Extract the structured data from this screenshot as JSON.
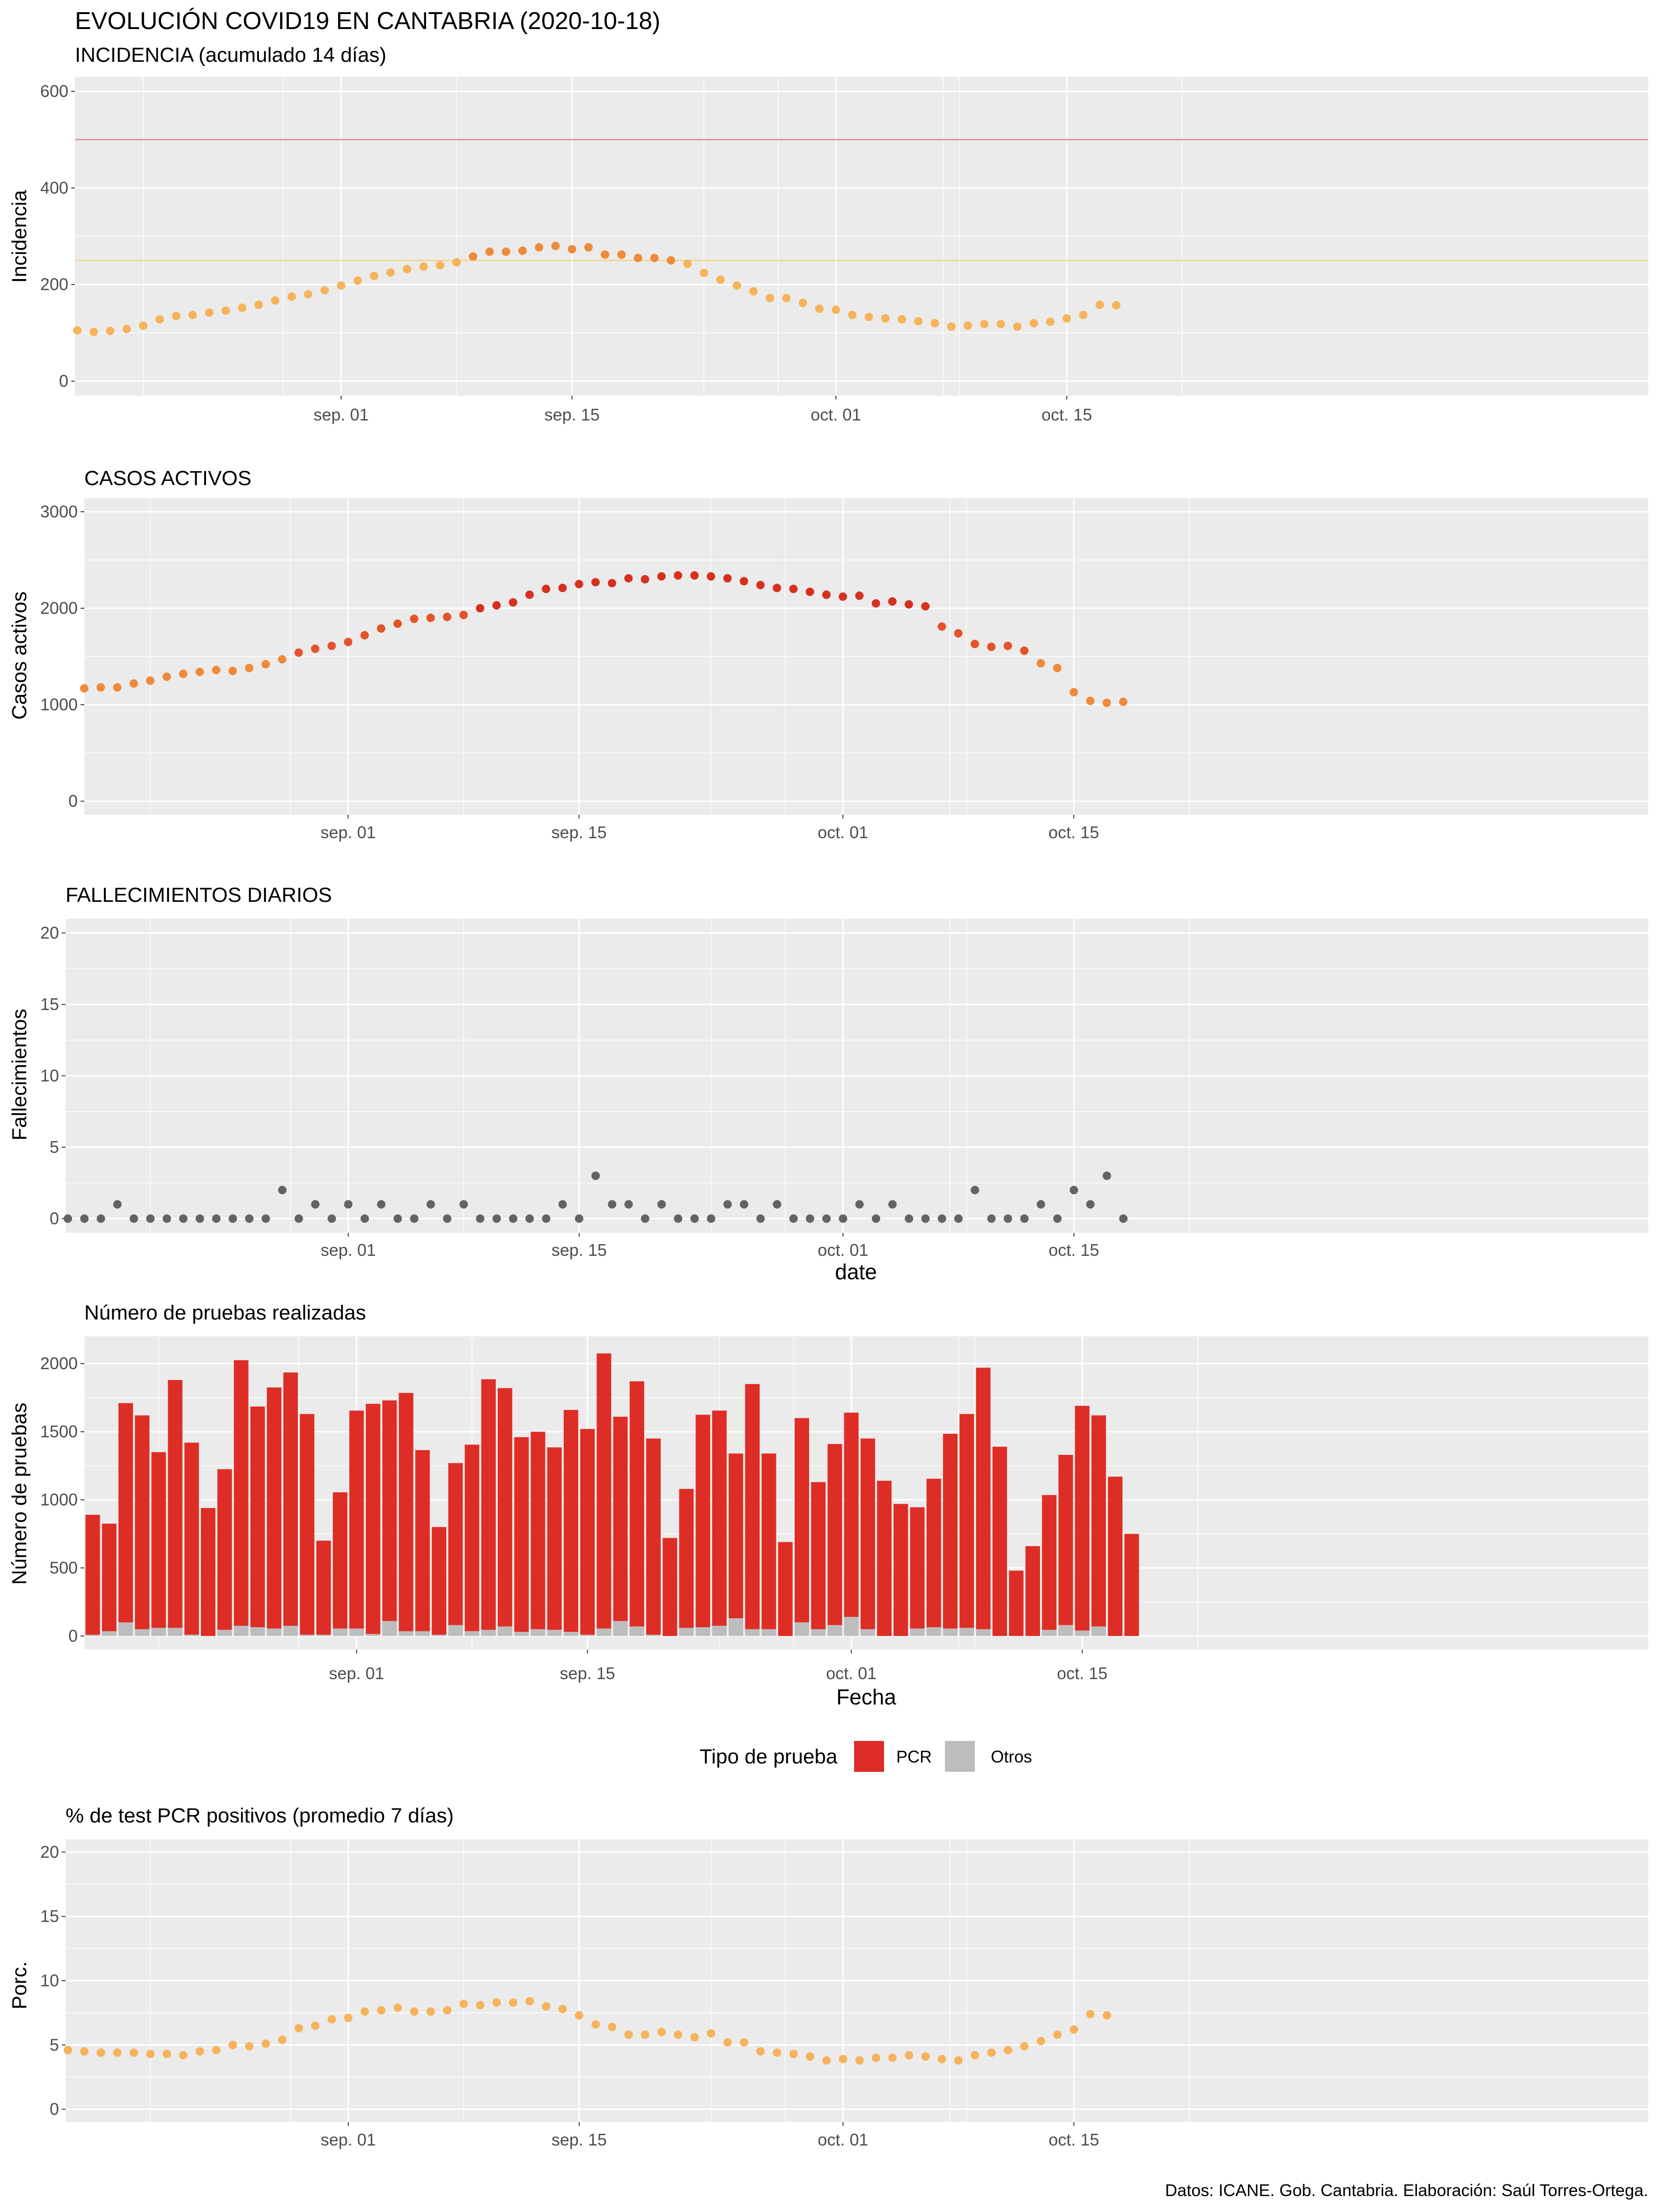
{
  "header": {
    "title": "EVOLUCIÓN COVID19 EN CANTABRIA (2020-10-18)",
    "subtitle": "INCIDENCIA (acumulado 14 días)"
  },
  "caption": "Datos: ICANE. Gob. Cantabria. Elaboración: Saúl Torres-Ortega.",
  "colors": {
    "panel": "#ebebeb",
    "grid": "#ffffff",
    "low": "#f6b35a",
    "mid": "#ef8a3a",
    "high": "#d7301f",
    "deaths": "#636363",
    "pcr": "#de2d26",
    "otros": "#bdbdbd",
    "ref_red": "#f08080",
    "ref_yellow": "#f5d27a"
  },
  "chart_data": [
    {
      "type": "scatter",
      "title": "",
      "ylabel": "Incidencia",
      "xlabel": "",
      "x_start": "2020-08-16",
      "x_ticks": [
        "sep. 01",
        "sep. 15",
        "oct. 01",
        "oct. 15"
      ],
      "ylim": [
        -30,
        630
      ],
      "y_ticks": [
        0,
        200,
        400,
        600
      ],
      "reference_lines": [
        500,
        250
      ],
      "values": [
        105,
        102,
        104,
        108,
        115,
        128,
        135,
        137,
        142,
        146,
        152,
        158,
        167,
        175,
        180,
        188,
        198,
        208,
        218,
        225,
        232,
        237,
        240,
        246,
        258,
        268,
        268,
        270,
        277,
        280,
        273,
        277,
        262,
        262,
        255,
        255,
        250,
        243,
        224,
        210,
        198,
        186,
        172,
        172,
        162,
        150,
        148,
        137,
        133,
        130,
        128,
        124,
        120,
        113,
        115,
        118,
        118,
        113,
        120,
        123,
        130,
        137,
        158,
        157
      ]
    },
    {
      "type": "scatter",
      "title": "CASOS ACTIVOS",
      "ylabel": "Casos activos",
      "xlabel": "",
      "x_start": "2020-08-16",
      "x_ticks": [
        "sep. 01",
        "sep. 15",
        "oct. 01",
        "oct. 15"
      ],
      "ylim": [
        -140,
        3140
      ],
      "y_ticks": [
        0,
        1000,
        2000,
        3000
      ],
      "values": [
        1170,
        1180,
        1180,
        1220,
        1250,
        1290,
        1320,
        1340,
        1360,
        1350,
        1380,
        1420,
        1470,
        1540,
        1580,
        1610,
        1650,
        1720,
        1790,
        1840,
        1890,
        1900,
        1910,
        1930,
        2000,
        2030,
        2060,
        2140,
        2200,
        2210,
        2250,
        2270,
        2260,
        2310,
        2300,
        2330,
        2340,
        2340,
        2330,
        2310,
        2280,
        2240,
        2210,
        2200,
        2170,
        2140,
        2120,
        2130,
        2050,
        2070,
        2040,
        2020,
        1810,
        1740,
        1630,
        1600,
        1610,
        1560,
        1430,
        1380,
        1130,
        1040,
        1020,
        1030
      ]
    },
    {
      "type": "scatter",
      "title": "FALLECIMIENTOS DIARIOS",
      "ylabel": "Fallecimientos",
      "xlabel": "date",
      "x_start": "2020-08-15",
      "x_ticks": [
        "sep. 01",
        "sep. 15",
        "oct. 01",
        "oct. 15"
      ],
      "ylim": [
        -1,
        21
      ],
      "y_ticks": [
        0,
        5,
        10,
        15,
        20
      ],
      "values": [
        0,
        0,
        0,
        1,
        0,
        0,
        0,
        0,
        0,
        0,
        0,
        0,
        0,
        2,
        0,
        1,
        0,
        1,
        0,
        1,
        0,
        0,
        1,
        0,
        1,
        0,
        0,
        0,
        0,
        0,
        1,
        0,
        3,
        1,
        1,
        0,
        1,
        0,
        0,
        0,
        1,
        1,
        0,
        1,
        0,
        0,
        0,
        0,
        1,
        0,
        1,
        0,
        0,
        0,
        0,
        2,
        0,
        0,
        0,
        1,
        0,
        2,
        1,
        3,
        0
      ]
    },
    {
      "type": "bar",
      "stacked": true,
      "title": "Número de pruebas realizadas",
      "ylabel": "Número de pruebas",
      "xlabel": "Fecha",
      "x_start": "2020-08-16",
      "x_ticks": [
        "sep. 01",
        "sep. 15",
        "oct. 01",
        "oct. 15"
      ],
      "ylim": [
        -100,
        2200
      ],
      "y_ticks": [
        0,
        500,
        1000,
        1500,
        2000
      ],
      "legend": {
        "title": "Tipo de prueba",
        "position": "bottom",
        "labels": [
          "PCR",
          "Otros"
        ]
      },
      "series": [
        {
          "name": "PCR",
          "values": [
            880,
            790,
            1610,
            1570,
            1290,
            1820,
            1410,
            940,
            1180,
            1950,
            1620,
            1770,
            1860,
            1620,
            690,
            1000,
            1600,
            1690,
            1620,
            1750,
            1330,
            790,
            1190,
            1370,
            1840,
            1750,
            1430,
            1450,
            1340,
            1630,
            1510,
            2020,
            1500,
            1800,
            1440,
            720,
            1020,
            1560,
            1580,
            1210,
            1800,
            1290,
            690,
            1500,
            1080,
            1330,
            1500,
            1400,
            1140,
            970,
            890,
            1090,
            1430,
            1570,
            1920,
            1390,
            480,
            660,
            990,
            1250,
            1650,
            1550,
            1170,
            750
          ]
        },
        {
          "name": "Otros",
          "values": [
            10,
            35,
            100,
            50,
            60,
            60,
            10,
            0,
            45,
            75,
            65,
            55,
            75,
            10,
            10,
            55,
            55,
            15,
            110,
            35,
            35,
            10,
            80,
            35,
            45,
            70,
            30,
            50,
            45,
            30,
            10,
            55,
            110,
            70,
            10,
            0,
            60,
            65,
            75,
            130,
            50,
            50,
            0,
            100,
            50,
            80,
            140,
            50,
            0,
            0,
            55,
            65,
            55,
            60,
            50,
            0,
            0,
            0,
            45,
            80,
            40,
            70,
            0,
            0
          ]
        }
      ]
    },
    {
      "type": "scatter",
      "title": "% de test PCR positivos (promedio 7 días)",
      "ylabel": "Porc.",
      "xlabel": "",
      "x_start": "2020-08-15",
      "x_ticks": [
        "sep. 01",
        "sep. 15",
        "oct. 01",
        "oct. 15"
      ],
      "ylim": [
        -1,
        21
      ],
      "y_ticks": [
        0,
        5,
        10,
        15,
        20
      ],
      "values": [
        4.6,
        4.5,
        4.4,
        4.4,
        4.4,
        4.3,
        4.3,
        4.2,
        4.5,
        4.6,
        5.0,
        4.9,
        5.1,
        5.4,
        6.3,
        6.5,
        7.0,
        7.1,
        7.6,
        7.7,
        7.9,
        7.6,
        7.6,
        7.7,
        8.2,
        8.1,
        8.3,
        8.3,
        8.4,
        8.0,
        7.8,
        7.3,
        6.6,
        6.4,
        5.8,
        5.8,
        6.0,
        5.8,
        5.6,
        5.9,
        5.2,
        5.2,
        4.5,
        4.4,
        4.3,
        4.1,
        3.8,
        3.9,
        3.8,
        4.0,
        4.0,
        4.2,
        4.1,
        3.9,
        3.8,
        4.2,
        4.4,
        4.6,
        4.9,
        5.3,
        5.8,
        6.2,
        7.4,
        7.3
      ]
    }
  ]
}
